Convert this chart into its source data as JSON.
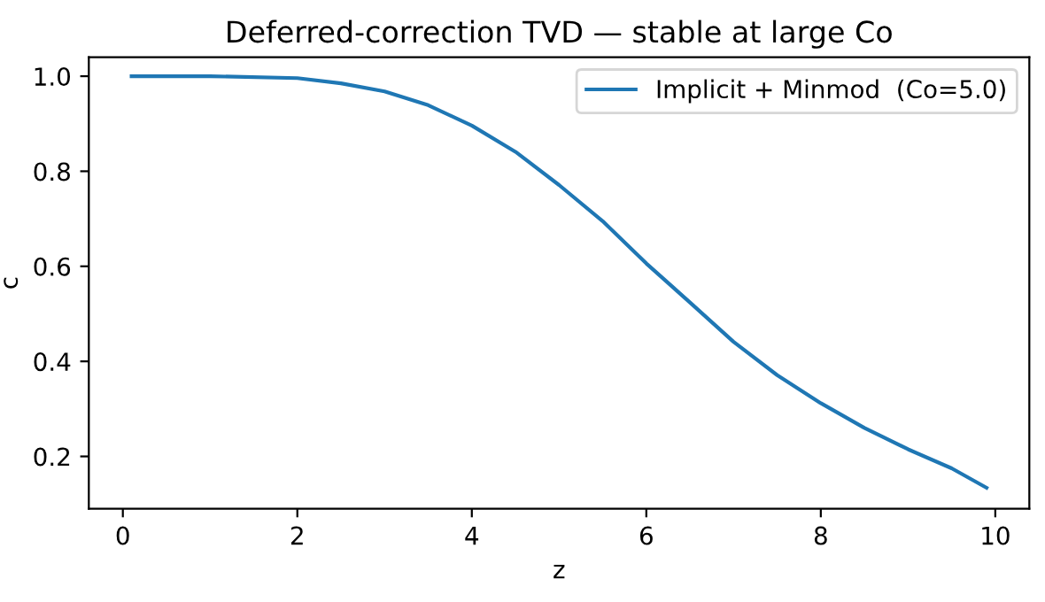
{
  "chart_data": {
    "type": "line",
    "title": "Deferred-correction TVD — stable at large Co",
    "xlabel": "z",
    "ylabel": "c",
    "x": [
      0.1,
      1,
      2,
      2.5,
      3,
      3.5,
      4,
      4.5,
      5,
      5.5,
      6,
      6.5,
      7,
      7.5,
      8,
      8.5,
      9,
      9.5,
      9.9
    ],
    "series": [
      {
        "name": "Implicit + Minmod  (Co=5.0)",
        "color": "#1f77b4",
        "values": [
          1.0,
          1.0,
          0.996,
          0.985,
          0.968,
          0.939,
          0.896,
          0.841,
          0.771,
          0.695,
          0.606,
          0.524,
          0.441,
          0.371,
          0.312,
          0.26,
          0.215,
          0.175,
          0.134
        ]
      }
    ],
    "xlim": [
      -0.39,
      10.39
    ],
    "ylim": [
      0.09,
      1.04
    ],
    "xticks": [
      0,
      2,
      4,
      6,
      8,
      10
    ],
    "yticks": [
      0.2,
      0.4,
      0.6,
      0.8,
      {
        "value": 1.0,
        "label": "1.0"
      }
    ],
    "legend": "top right",
    "grid": false,
    "marker": "none",
    "line_style": "solid"
  }
}
